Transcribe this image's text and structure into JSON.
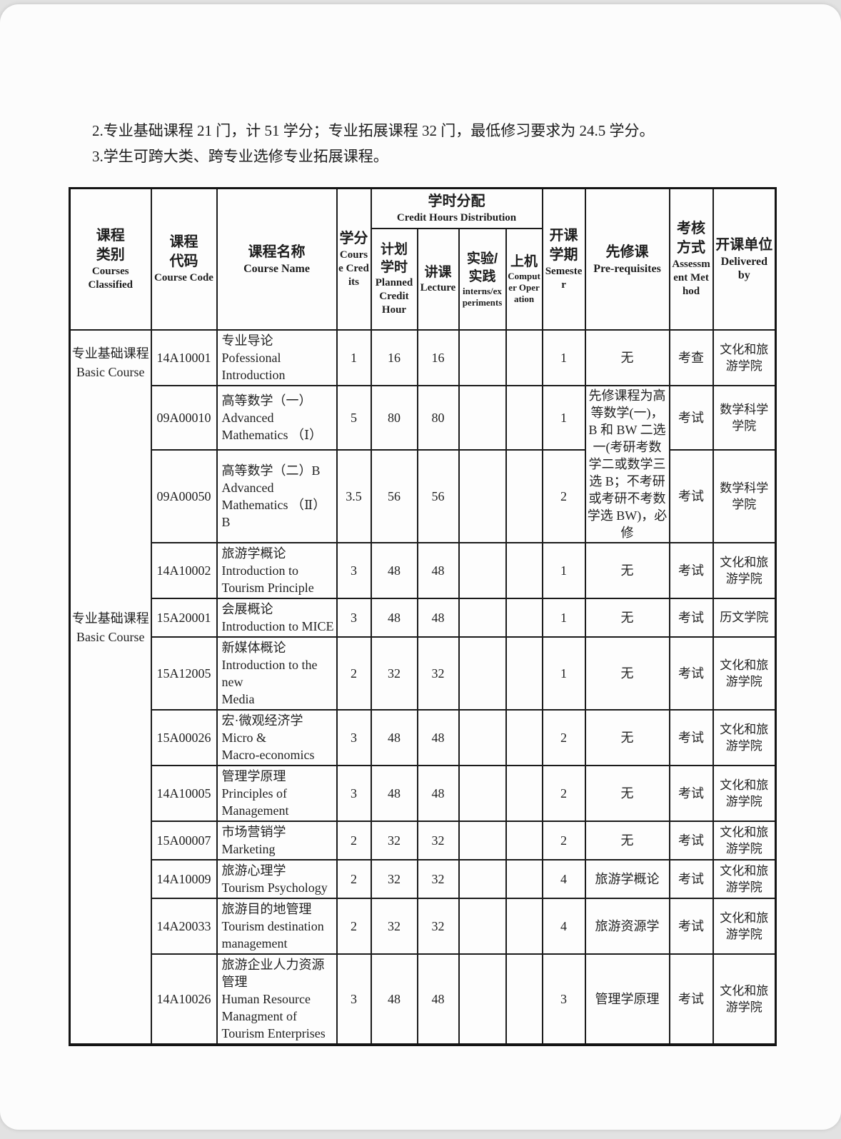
{
  "notes": [
    "2.专业基础课程 21 门，计 51 学分；专业拓展课程 32 门，最低修习要求为 24.5 学分。",
    "3.学生可跨大类、跨专业选修专业拓展课程。"
  ],
  "table": {
    "headers": {
      "category": {
        "zh": "课程\n类别",
        "en": "Courses Classified"
      },
      "code": {
        "zh": "课程\n代码",
        "en": "Course Code"
      },
      "name": {
        "zh": "课程名称",
        "en": "Course Name"
      },
      "credits": {
        "zh": "学分",
        "en": "Course Credits"
      },
      "dist": {
        "zh": "学时分配",
        "en": "Credit Hours Distribution"
      },
      "planned": {
        "zh": "计划\n学时",
        "en": "Planned Credit Hour"
      },
      "lecture": {
        "zh": "讲课",
        "en": "Lecture"
      },
      "experiments": {
        "zh": "实验/\n实践",
        "en": "interns/experiments"
      },
      "computer": {
        "zh": "上机",
        "en": "Computer Operation"
      },
      "semester": {
        "zh": "开课\n学期",
        "en": "Semester"
      },
      "prereq": {
        "zh": "先修课",
        "en": "Pre-requisites"
      },
      "assessment": {
        "zh": "考核\n方式",
        "en": "Assessment Method"
      },
      "delivery": {
        "zh": "开课单位",
        "en": "Delivered by"
      }
    },
    "category": {
      "label_top": "专业基础课程\nBasic Course",
      "label_mid": "专业基础课程\nBasic Course"
    },
    "rows": [
      {
        "code": "14A10001",
        "name_zh": "专业导论",
        "name_en": "Pofessional\nIntroduction",
        "credits": "1",
        "planned": "16",
        "lecture": "16",
        "experiments": "",
        "computer": "",
        "semester": "1",
        "prereq": "无",
        "assessment": "考查",
        "department": "文化和旅游学院"
      },
      {
        "code": "09A00010",
        "name_zh": "高等数学（一）",
        "name_en": "Advanced\nMathematics （Ⅰ）",
        "credits": "5",
        "planned": "80",
        "lecture": "80",
        "experiments": "",
        "computer": "",
        "semester": "1",
        "prereq": "先修课程为高等数学(一)，B 和 BW 二选一(考研考数学二或数学三选 B；不考研或考研不考数学选 BW)，必修",
        "assessment": "考试",
        "department": "数学科学学院"
      },
      {
        "code": "09A00050",
        "name_zh": "高等数学（二）B",
        "name_en": "Advanced\nMathematics （Ⅱ） B",
        "credits": "3.5",
        "planned": "56",
        "lecture": "56",
        "experiments": "",
        "computer": "",
        "semester": "2",
        "prereq": "",
        "assessment": "考试",
        "department": "数学科学学院"
      },
      {
        "code": "14A10002",
        "name_zh": "旅游学概论",
        "name_en": "Introduction to\nTourism Principle",
        "credits": "3",
        "planned": "48",
        "lecture": "48",
        "experiments": "",
        "computer": "",
        "semester": "1",
        "prereq": "无",
        "assessment": "考试",
        "department": "文化和旅游学院"
      },
      {
        "code": "15A20001",
        "name_zh": "会展概论",
        "name_en": "Introduction to MICE",
        "credits": "3",
        "planned": "48",
        "lecture": "48",
        "experiments": "",
        "computer": "",
        "semester": "1",
        "prereq": "无",
        "assessment": "考试",
        "department": "历文学院"
      },
      {
        "code": "15A12005",
        "name_zh": "新媒体概论",
        "name_en": "Introduction to the new\nMedia",
        "credits": "2",
        "planned": "32",
        "lecture": "32",
        "experiments": "",
        "computer": "",
        "semester": "1",
        "prereq": "无",
        "assessment": "考试",
        "department": "文化和旅游学院"
      },
      {
        "code": "15A00026",
        "name_zh": "宏·微观经济学",
        "name_en": "Micro &\nMacro-economics",
        "credits": "3",
        "planned": "48",
        "lecture": "48",
        "experiments": "",
        "computer": "",
        "semester": "2",
        "prereq": "无",
        "assessment": "考试",
        "department": "文化和旅游学院"
      },
      {
        "code": "14A10005",
        "name_zh": "管理学原理",
        "name_en": "Principles of\nManagement",
        "credits": "3",
        "planned": "48",
        "lecture": "48",
        "experiments": "",
        "computer": "",
        "semester": "2",
        "prereq": "无",
        "assessment": "考试",
        "department": "文化和旅游学院"
      },
      {
        "code": "15A00007",
        "name_zh": "市场营销学",
        "name_en": "Marketing",
        "credits": "2",
        "planned": "32",
        "lecture": "32",
        "experiments": "",
        "computer": "",
        "semester": "2",
        "prereq": "无",
        "assessment": "考试",
        "department": "文化和旅游学院"
      },
      {
        "code": "14A10009",
        "name_zh": "旅游心理学",
        "name_en": "Tourism Psychology",
        "credits": "2",
        "planned": "32",
        "lecture": "32",
        "experiments": "",
        "computer": "",
        "semester": "4",
        "prereq": "旅游学概论",
        "assessment": "考试",
        "department": "文化和旅游学院"
      },
      {
        "code": "14A20033",
        "name_zh": "旅游目的地管理",
        "name_en": "Tourism destination\nmanagement",
        "credits": "2",
        "planned": "32",
        "lecture": "32",
        "experiments": "",
        "computer": "",
        "semester": "4",
        "prereq": "旅游资源学",
        "assessment": "考试",
        "department": "文化和旅游学院"
      },
      {
        "code": "14A10026",
        "name_zh": "旅游企业人力资源管理",
        "name_en": "Human Resource\nManagment of\nTourism Enterprises",
        "credits": "3",
        "planned": "48",
        "lecture": "48",
        "experiments": "",
        "computer": "",
        "semester": "3",
        "prereq": "管理学原理",
        "assessment": "考试",
        "department": "文化和旅游学院"
      }
    ]
  }
}
